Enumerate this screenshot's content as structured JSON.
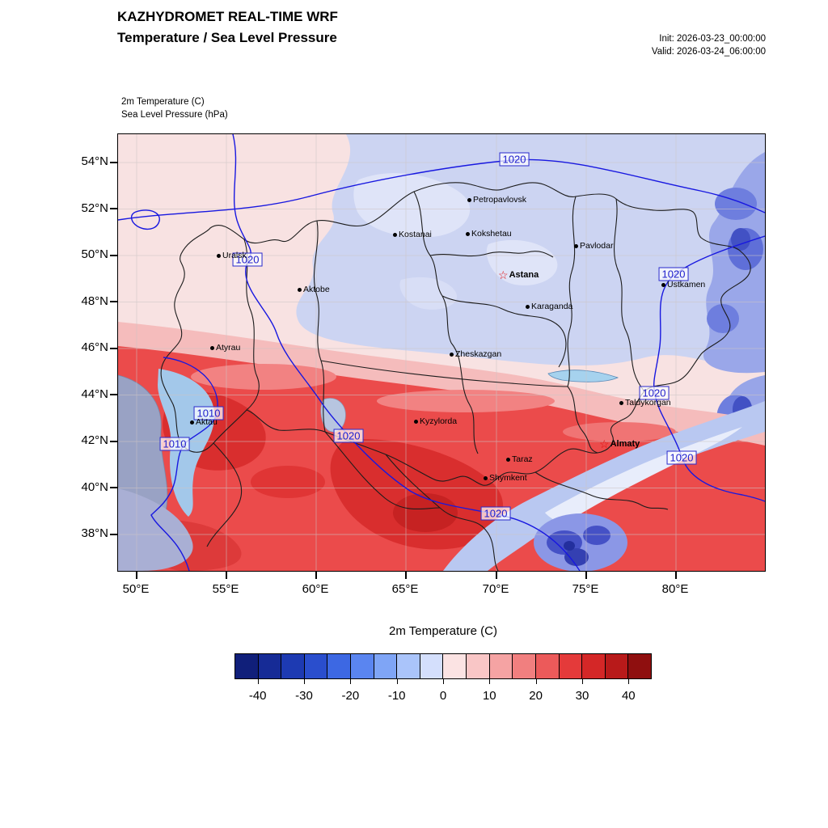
{
  "header": {
    "title_line1": "KAZHYDROMET REAL-TIME WRF",
    "title_line2": "Temperature / Sea Level Pressure",
    "init": "Init: 2026-03-23_00:00:00",
    "valid": "Valid: 2026-03-24_06:00:00"
  },
  "map": {
    "field_label_1": "2m Temperature   (C)",
    "field_label_2": "Sea Level Pressure   (hPa)",
    "y_ticks": [
      "54°N",
      "52°N",
      "50°N",
      "48°N",
      "46°N",
      "44°N",
      "42°N",
      "40°N",
      "38°N"
    ],
    "x_ticks": [
      "50°E",
      "55°E",
      "60°E",
      "65°E",
      "70°E",
      "75°E",
      "80°E"
    ],
    "cities": [
      {
        "name": "Petropavlovsk"
      },
      {
        "name": "Kostanai"
      },
      {
        "name": "Kokshetau"
      },
      {
        "name": "Pavlodar"
      },
      {
        "name": "Uralsk"
      },
      {
        "name": "Aktobe"
      },
      {
        "name": "Astana",
        "capital": true
      },
      {
        "name": "Ustkamen"
      },
      {
        "name": "Karaganda"
      },
      {
        "name": "Atyrau"
      },
      {
        "name": "Zheskazgan"
      },
      {
        "name": "Taldykorgan"
      },
      {
        "name": "Aktau"
      },
      {
        "name": "Kyzylorda"
      },
      {
        "name": "Almaty",
        "capital": true
      },
      {
        "name": "Taraz"
      },
      {
        "name": "Shymkent"
      }
    ],
    "pressure_labels": [
      "1020",
      "1020",
      "1020",
      "1010",
      "1010",
      "1020",
      "1020",
      "1020",
      "1020"
    ]
  },
  "icons": {
    "capital_star": "☆"
  },
  "colorbar": {
    "title": "2m Temperature  (C)",
    "ticks": [
      "-40",
      "-30",
      "-20",
      "-10",
      "0",
      "10",
      "20",
      "30",
      "40"
    ],
    "tick_positions_pct": [
      5.56,
      16.67,
      27.78,
      38.89,
      50,
      61.11,
      72.22,
      83.33,
      94.44
    ],
    "colors": [
      "#101f7a",
      "#162b96",
      "#1d3ab2",
      "#2a4ecd",
      "#3d68e3",
      "#5a85f0",
      "#7fa5f6",
      "#aac4fa",
      "#d4dffc",
      "#fbe3e3",
      "#f9c6c6",
      "#f5a3a3",
      "#f17f7f",
      "#ec5a5a",
      "#e43a3a",
      "#d42727",
      "#b81a1a",
      "#8f0f0f"
    ]
  }
}
